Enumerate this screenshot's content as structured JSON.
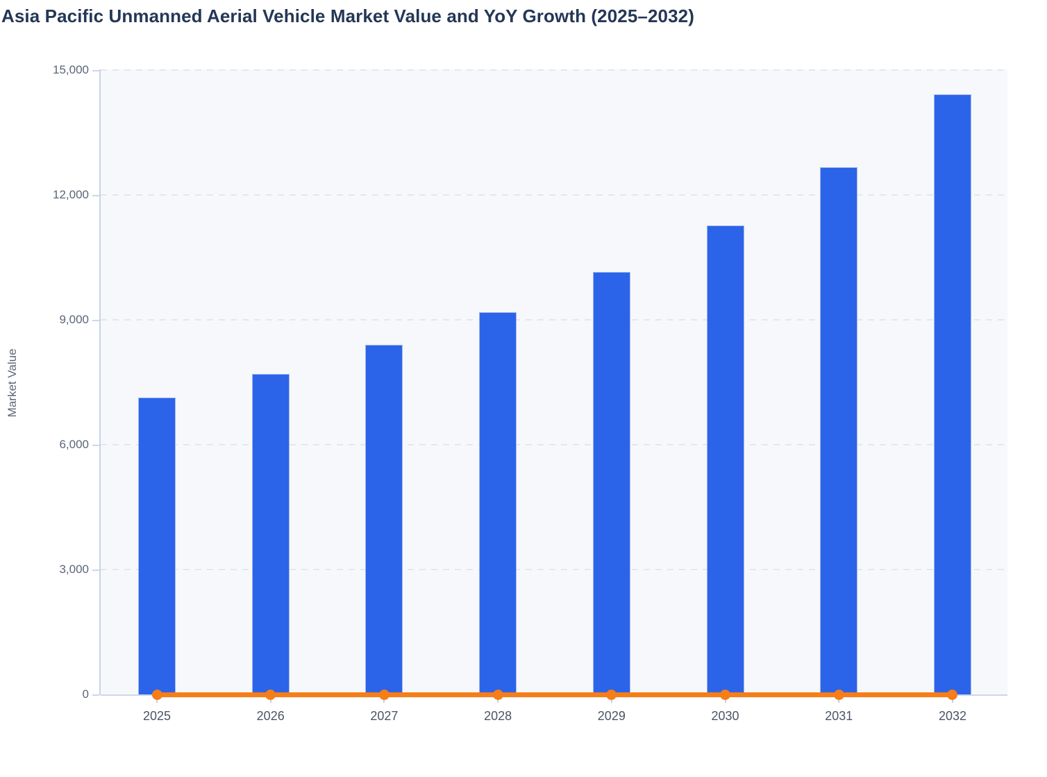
{
  "title": "Asia Pacific Unmanned Aerial Vehicle Market Value and YoY Growth (2025–2032)",
  "chart_data": {
    "type": "bar",
    "title": "Asia Pacific Unmanned Aerial Vehicle Market Value and YoY Growth (2025–2032)",
    "categories": [
      "2025",
      "2026",
      "2027",
      "2028",
      "2029",
      "2030",
      "2031",
      "2032"
    ],
    "series": [
      {
        "name": "Market Value",
        "type": "bar",
        "color": "#2b64e8",
        "values": [
          7150,
          7720,
          8420,
          9200,
          10170,
          11280,
          12680,
          14430
        ]
      },
      {
        "name": "YoY Growth",
        "type": "line",
        "color": "#f67d17",
        "values": [
          0,
          0,
          0,
          0,
          0,
          0,
          0,
          0
        ]
      }
    ],
    "xlabel": "",
    "ylabel": "Market Value",
    "ylim": [
      0,
      15000
    ],
    "ytick_values": [
      0,
      3000,
      6000,
      9000,
      12000,
      15000
    ],
    "ytick_labels": [
      "0",
      "3,000",
      "6,000",
      "9,000",
      "12,000",
      "15,000"
    ],
    "grid": "horizontal-dashed",
    "legend_position": "none",
    "plot_background": "#f7f8fb",
    "bar_color": "#2b64e8",
    "line_color": "#f67d17"
  }
}
